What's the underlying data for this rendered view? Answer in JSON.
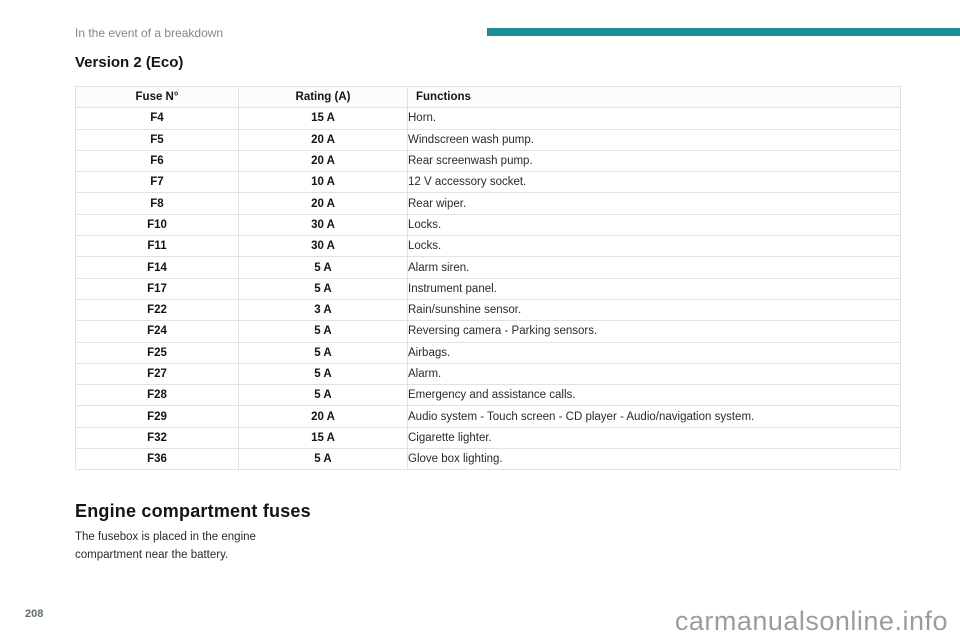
{
  "page": {
    "breadcrumb": "In the event of a breakdown",
    "section_title": "Version 2 (Eco)",
    "page_number": "208",
    "watermark": "carmanualsonline.info"
  },
  "colors": {
    "accent_teal": "#1e8e96",
    "breadcrumb_gray": "#7b898d",
    "table_border": "#dde4e5",
    "watermark_gray": "#9c9c9c",
    "page_number_slate": "#5a6c70"
  },
  "fuse_table": {
    "headers": [
      "Fuse N°",
      "Rating (A)",
      "Functions"
    ],
    "rows": [
      {
        "fuse": "F4",
        "rating": "15 A",
        "function": "Horn."
      },
      {
        "fuse": "F5",
        "rating": "20 A",
        "function": "Windscreen wash pump."
      },
      {
        "fuse": "F6",
        "rating": "20 A",
        "function": "Rear screenwash pump."
      },
      {
        "fuse": "F7",
        "rating": "10 A",
        "function": "12 V accessory socket."
      },
      {
        "fuse": "F8",
        "rating": "20 A",
        "function": "Rear wiper."
      },
      {
        "fuse": "F10",
        "rating": "30 A",
        "function": "Locks."
      },
      {
        "fuse": "F11",
        "rating": "30 A",
        "function": "Locks."
      },
      {
        "fuse": "F14",
        "rating": "5 A",
        "function": "Alarm siren."
      },
      {
        "fuse": "F17",
        "rating": "5 A",
        "function": "Instrument panel."
      },
      {
        "fuse": "F22",
        "rating": "3 A",
        "function": "Rain/sunshine sensor."
      },
      {
        "fuse": "F24",
        "rating": "5 A",
        "function": "Reversing camera - Parking sensors."
      },
      {
        "fuse": "F25",
        "rating": "5 A",
        "function": "Airbags."
      },
      {
        "fuse": "F27",
        "rating": "5 A",
        "function": "Alarm."
      },
      {
        "fuse": "F28",
        "rating": "5 A",
        "function": "Emergency and assistance calls."
      },
      {
        "fuse": "F29",
        "rating": "20 A",
        "function": "Audio system - Touch screen - CD player - Audio/navigation system."
      },
      {
        "fuse": "F32",
        "rating": "15 A",
        "function": "Cigarette lighter."
      },
      {
        "fuse": "F36",
        "rating": "5 A",
        "function": "Glove box lighting."
      }
    ]
  },
  "engine_section": {
    "title": "Engine compartment fuses",
    "body": "The fusebox is placed in the engine compartment near the battery."
  }
}
